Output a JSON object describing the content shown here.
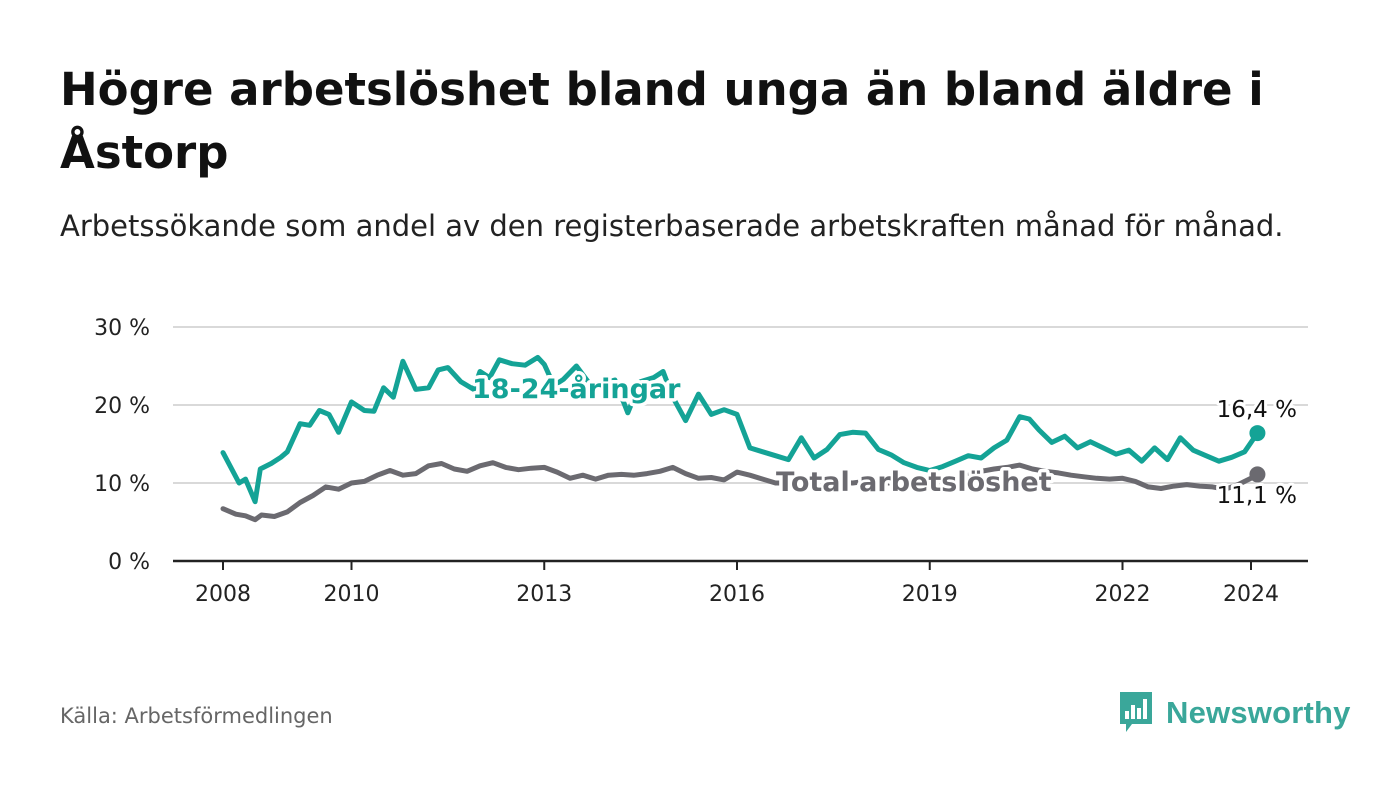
{
  "title": "Högre arbetslöshet bland unga än bland äldre i Åstorp",
  "subtitle": "Arbetssökande som andel av den registerbaserade arbetskraften månad för månad.",
  "source": "Källa: Arbetsförmedlingen",
  "brand": {
    "name": "Newsworthy",
    "icon": "bar-chart-speech-bubble-icon",
    "color": "#3aa79a"
  },
  "chart_data": {
    "type": "line",
    "title": "Högre arbetslöshet bland unga än bland äldre i Åstorp",
    "xlabel": "",
    "ylabel": "",
    "ylim": [
      0,
      30
    ],
    "xlim": [
      2007.75,
      2024.9
    ],
    "y_ticks": [
      0,
      10,
      20,
      30
    ],
    "y_tick_labels": [
      "0 %",
      "10 %",
      "20 %",
      "30 %"
    ],
    "x_ticks": [
      2008,
      2010,
      2013,
      2016,
      2019,
      2022,
      2024
    ],
    "x_tick_labels": [
      "2008",
      "2010",
      "2013",
      "2016",
      "2019",
      "2022",
      "2024"
    ],
    "grid": true,
    "series": [
      {
        "name": "18-24-åringar",
        "label": "18-24-åringar",
        "color": "#14a396",
        "end_label": "16,4 %",
        "end_value": 16.4,
        "x": [
          2008.0,
          2008.25,
          2008.35,
          2008.5,
          2008.58,
          2008.75,
          2008.9,
          2009.0,
          2009.2,
          2009.35,
          2009.5,
          2009.65,
          2009.8,
          2010.0,
          2010.2,
          2010.35,
          2010.5,
          2010.65,
          2010.8,
          2011.0,
          2011.2,
          2011.35,
          2011.5,
          2011.7,
          2011.9,
          2012.0,
          2012.15,
          2012.3,
          2012.5,
          2012.7,
          2012.9,
          2013.0,
          2013.15,
          2013.3,
          2013.5,
          2013.7,
          2013.9,
          2014.1,
          2014.3,
          2014.5,
          2014.7,
          2014.85,
          2015.0,
          2015.2,
          2015.4,
          2015.6,
          2015.8,
          2016.0,
          2016.2,
          2016.4,
          2016.6,
          2016.8,
          2017.0,
          2017.2,
          2017.4,
          2017.6,
          2017.8,
          2018.0,
          2018.2,
          2018.4,
          2018.6,
          2018.8,
          2019.0,
          2019.2,
          2019.4,
          2019.6,
          2019.8,
          2020.0,
          2020.2,
          2020.4,
          2020.55,
          2020.7,
          2020.9,
          2021.1,
          2021.3,
          2021.5,
          2021.7,
          2021.9,
          2022.1,
          2022.3,
          2022.5,
          2022.7,
          2022.9,
          2023.1,
          2023.3,
          2023.5,
          2023.7,
          2023.9,
          2024.1
        ],
        "values": [
          13.9,
          10.0,
          10.5,
          7.6,
          11.8,
          12.5,
          13.3,
          14.0,
          17.6,
          17.4,
          19.3,
          18.8,
          16.5,
          20.4,
          19.3,
          19.2,
          22.2,
          21.0,
          25.6,
          22.0,
          22.2,
          24.5,
          24.8,
          23.0,
          22.0,
          24.3,
          23.5,
          25.8,
          25.3,
          25.1,
          26.1,
          25.2,
          22.5,
          23.3,
          25.0,
          22.8,
          22.7,
          23.2,
          19.0,
          23.0,
          23.5,
          24.3,
          21.0,
          18.0,
          21.4,
          18.8,
          19.4,
          18.8,
          14.5,
          14.0,
          13.5,
          13.0,
          15.8,
          13.2,
          14.3,
          16.2,
          16.5,
          16.4,
          14.3,
          13.6,
          12.6,
          12.0,
          11.6,
          12.1,
          12.8,
          13.5,
          13.2,
          14.5,
          15.5,
          18.5,
          18.2,
          16.8,
          15.2,
          16.0,
          14.5,
          15.3,
          14.5,
          13.7,
          14.2,
          12.8,
          14.5,
          13.0,
          15.8,
          14.2,
          13.5,
          12.8,
          13.3,
          14.0,
          16.4
        ]
      },
      {
        "name": "Total arbetslöshet",
        "label": "Total arbetslöshet",
        "color": "#6b6a70",
        "end_label": "11,1 %",
        "end_value": 11.1,
        "x": [
          2008.0,
          2008.2,
          2008.35,
          2008.5,
          2008.6,
          2008.8,
          2009.0,
          2009.2,
          2009.4,
          2009.6,
          2009.8,
          2010.0,
          2010.2,
          2010.4,
          2010.6,
          2010.8,
          2011.0,
          2011.2,
          2011.4,
          2011.6,
          2011.8,
          2012.0,
          2012.2,
          2012.4,
          2012.6,
          2012.8,
          2013.0,
          2013.2,
          2013.4,
          2013.6,
          2013.8,
          2014.0,
          2014.2,
          2014.4,
          2014.6,
          2014.8,
          2015.0,
          2015.2,
          2015.4,
          2015.6,
          2015.8,
          2016.0,
          2016.2,
          2016.4,
          2016.6,
          2016.8,
          2017.0,
          2017.2,
          2017.4,
          2017.6,
          2017.8,
          2018.0,
          2018.2,
          2018.4,
          2018.6,
          2018.8,
          2019.0,
          2019.2,
          2019.4,
          2019.6,
          2019.8,
          2020.0,
          2020.2,
          2020.4,
          2020.6,
          2020.8,
          2021.0,
          2021.2,
          2021.4,
          2021.6,
          2021.8,
          2022.0,
          2022.2,
          2022.4,
          2022.6,
          2022.8,
          2023.0,
          2023.2,
          2023.4,
          2023.6,
          2023.8,
          2024.0,
          2024.1
        ],
        "values": [
          6.7,
          6.0,
          5.8,
          5.3,
          5.9,
          5.7,
          6.3,
          7.5,
          8.4,
          9.5,
          9.2,
          10.0,
          10.2,
          11.0,
          11.6,
          11.0,
          11.2,
          12.2,
          12.5,
          11.8,
          11.5,
          12.2,
          12.6,
          12.0,
          11.7,
          11.9,
          12.0,
          11.4,
          10.6,
          11.0,
          10.5,
          11.0,
          11.1,
          11.0,
          11.2,
          11.5,
          12.0,
          11.2,
          10.6,
          10.7,
          10.4,
          11.4,
          11.0,
          10.5,
          10.0,
          10.0,
          9.8,
          10.0,
          10.3,
          10.1,
          10.0,
          10.2,
          10.0,
          10.0,
          10.3,
          10.0,
          9.8,
          10.2,
          10.5,
          11.0,
          11.5,
          11.8,
          12.0,
          12.3,
          11.8,
          11.5,
          11.3,
          11.0,
          10.8,
          10.6,
          10.5,
          10.6,
          10.2,
          9.5,
          9.3,
          9.6,
          9.8,
          9.6,
          9.5,
          9.2,
          9.8,
          10.6,
          11.1
        ]
      }
    ]
  }
}
